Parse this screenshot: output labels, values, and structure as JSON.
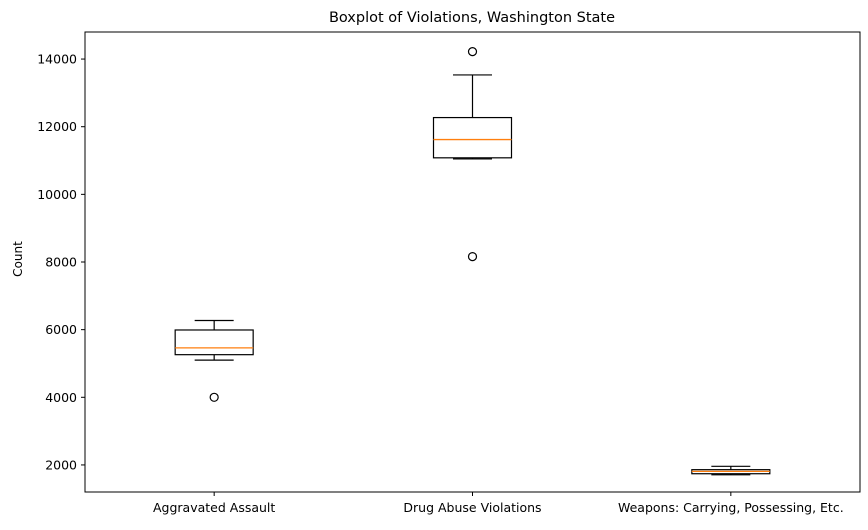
{
  "chart_data": {
    "type": "boxplot",
    "title": "Boxplot of Violations, Washington State",
    "xlabel": "",
    "ylabel": "Count",
    "ylim": [
      1200,
      14800
    ],
    "yticks": [
      2000,
      4000,
      6000,
      8000,
      10000,
      12000,
      14000
    ],
    "grid": false,
    "categories": [
      "Aggravated Assault",
      "Drug Abuse Violations",
      "Weapons: Carrying, Possessing, Etc."
    ],
    "boxes": [
      {
        "whisker_low": 5100,
        "q1": 5260,
        "median": 5460,
        "q3": 5990,
        "whisker_high": 6270,
        "outliers": [
          4000
        ]
      },
      {
        "whisker_low": 11050,
        "q1": 11080,
        "median": 11620,
        "q3": 12270,
        "whisker_high": 13530,
        "outliers": [
          8160,
          14220
        ]
      },
      {
        "whisker_low": 1710,
        "q1": 1740,
        "median": 1810,
        "q3": 1860,
        "whisker_high": 1960,
        "outliers": []
      }
    ],
    "colors": {
      "box": "#000000",
      "median": "#ff7f0e",
      "outlier_face": "#ffffff"
    }
  }
}
